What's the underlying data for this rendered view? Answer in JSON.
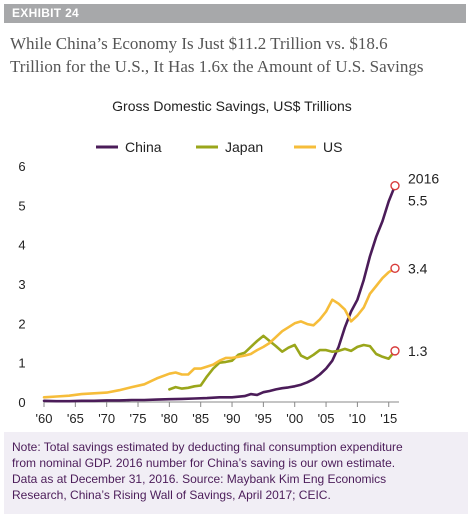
{
  "exhibit_label": "EXHIBIT 24",
  "headline": {
    "line1": "While China’s Economy Is Just $11.2 Trillion vs. $18.6",
    "line2": "Trillion for the U.S., It Has 1.6x the Amount of U.S. Savings"
  },
  "note": {
    "line1": "Note: Total savings estimated by deducting final consumption expenditure",
    "line2": "from nominal GDP. 2016 number for China’s saving is our own estimate.",
    "line3": "Data as at December 31, 2016. Source: Maybank Kim Eng Economics",
    "line4": "Research, China’s Rising Wall of Savings, April 2017; CEIC."
  },
  "colors": {
    "china": "#4b1c59",
    "japan": "#9aa61b",
    "us": "#f6bd3a",
    "marker": "#d83b3b",
    "axis": "#888888",
    "text": "#222222"
  },
  "chart_data": {
    "type": "line",
    "title": "Gross Domestic Savings, US$ Trillions",
    "xlabel": "",
    "ylabel": "",
    "xlim": [
      1960,
      2016
    ],
    "ylim": [
      0,
      6
    ],
    "x_tick_values": [
      1960,
      1965,
      1970,
      1975,
      1980,
      1985,
      1990,
      1995,
      2000,
      2005,
      2010,
      2015
    ],
    "x_tick_labels": [
      "'60",
      "'65",
      "'70",
      "'75",
      "'80",
      "'85",
      "'90",
      "'95",
      "'00",
      "'05",
      "'10",
      "'15"
    ],
    "y_ticks": [
      0,
      1,
      2,
      3,
      4,
      5,
      6
    ],
    "grid": false,
    "legend_position": "top",
    "series": [
      {
        "name": "China",
        "color": "#4b1c59",
        "x": [
          1960,
          1962,
          1964,
          1966,
          1968,
          1970,
          1972,
          1974,
          1976,
          1978,
          1980,
          1982,
          1984,
          1986,
          1988,
          1990,
          1992,
          1993,
          1994,
          1995,
          1996,
          1997,
          1998,
          1999,
          2000,
          2001,
          2002,
          2003,
          2004,
          2005,
          2006,
          2007,
          2008,
          2009,
          2010,
          2011,
          2012,
          2013,
          2014,
          2015,
          2016
        ],
        "values": [
          0.03,
          0.02,
          0.02,
          0.03,
          0.03,
          0.04,
          0.04,
          0.05,
          0.05,
          0.06,
          0.07,
          0.08,
          0.09,
          0.1,
          0.12,
          0.12,
          0.15,
          0.2,
          0.18,
          0.25,
          0.28,
          0.32,
          0.35,
          0.37,
          0.4,
          0.44,
          0.5,
          0.58,
          0.7,
          0.85,
          1.05,
          1.4,
          1.9,
          2.3,
          2.6,
          3.1,
          3.7,
          4.2,
          4.6,
          5.1,
          5.5
        ]
      },
      {
        "name": "Japan",
        "color": "#9aa61b",
        "x": [
          1980,
          1981,
          1982,
          1983,
          1984,
          1985,
          1986,
          1987,
          1988,
          1989,
          1990,
          1991,
          1992,
          1993,
          1994,
          1995,
          1996,
          1997,
          1998,
          1999,
          2000,
          2001,
          2002,
          2003,
          2004,
          2005,
          2006,
          2007,
          2008,
          2009,
          2010,
          2011,
          2012,
          2013,
          2014,
          2015,
          2016
        ],
        "values": [
          0.32,
          0.38,
          0.34,
          0.36,
          0.4,
          0.42,
          0.65,
          0.85,
          1.0,
          1.02,
          1.05,
          1.2,
          1.25,
          1.4,
          1.55,
          1.68,
          1.55,
          1.42,
          1.28,
          1.38,
          1.45,
          1.18,
          1.1,
          1.2,
          1.32,
          1.32,
          1.28,
          1.3,
          1.35,
          1.3,
          1.4,
          1.45,
          1.42,
          1.22,
          1.15,
          1.1,
          1.3
        ]
      },
      {
        "name": "US",
        "color": "#f6bd3a",
        "x": [
          1960,
          1962,
          1964,
          1966,
          1968,
          1970,
          1972,
          1974,
          1976,
          1978,
          1980,
          1981,
          1982,
          1983,
          1984,
          1985,
          1986,
          1987,
          1988,
          1989,
          1990,
          1991,
          1992,
          1993,
          1994,
          1995,
          1996,
          1997,
          1998,
          1999,
          2000,
          2001,
          2002,
          2003,
          2004,
          2005,
          2006,
          2007,
          2008,
          2009,
          2010,
          2011,
          2012,
          2013,
          2014,
          2015,
          2016
        ],
        "values": [
          0.12,
          0.14,
          0.16,
          0.2,
          0.22,
          0.24,
          0.3,
          0.38,
          0.45,
          0.6,
          0.72,
          0.75,
          0.7,
          0.7,
          0.85,
          0.85,
          0.9,
          0.95,
          1.05,
          1.12,
          1.12,
          1.15,
          1.18,
          1.22,
          1.32,
          1.4,
          1.5,
          1.65,
          1.8,
          1.9,
          2.0,
          2.05,
          1.98,
          1.95,
          2.1,
          2.3,
          2.6,
          2.5,
          2.35,
          2.05,
          2.2,
          2.4,
          2.75,
          2.95,
          3.15,
          3.3,
          3.4
        ]
      }
    ],
    "annotations": [
      {
        "text": "2016",
        "x": 2016,
        "y": 5.5
      },
      {
        "text": "5.5",
        "series": "China",
        "x": 2016,
        "y": 5.5
      },
      {
        "text": "3.4",
        "series": "US",
        "x": 2016,
        "y": 3.4
      },
      {
        "text": "1.3",
        "series": "Japan",
        "x": 2016,
        "y": 1.3
      }
    ]
  }
}
